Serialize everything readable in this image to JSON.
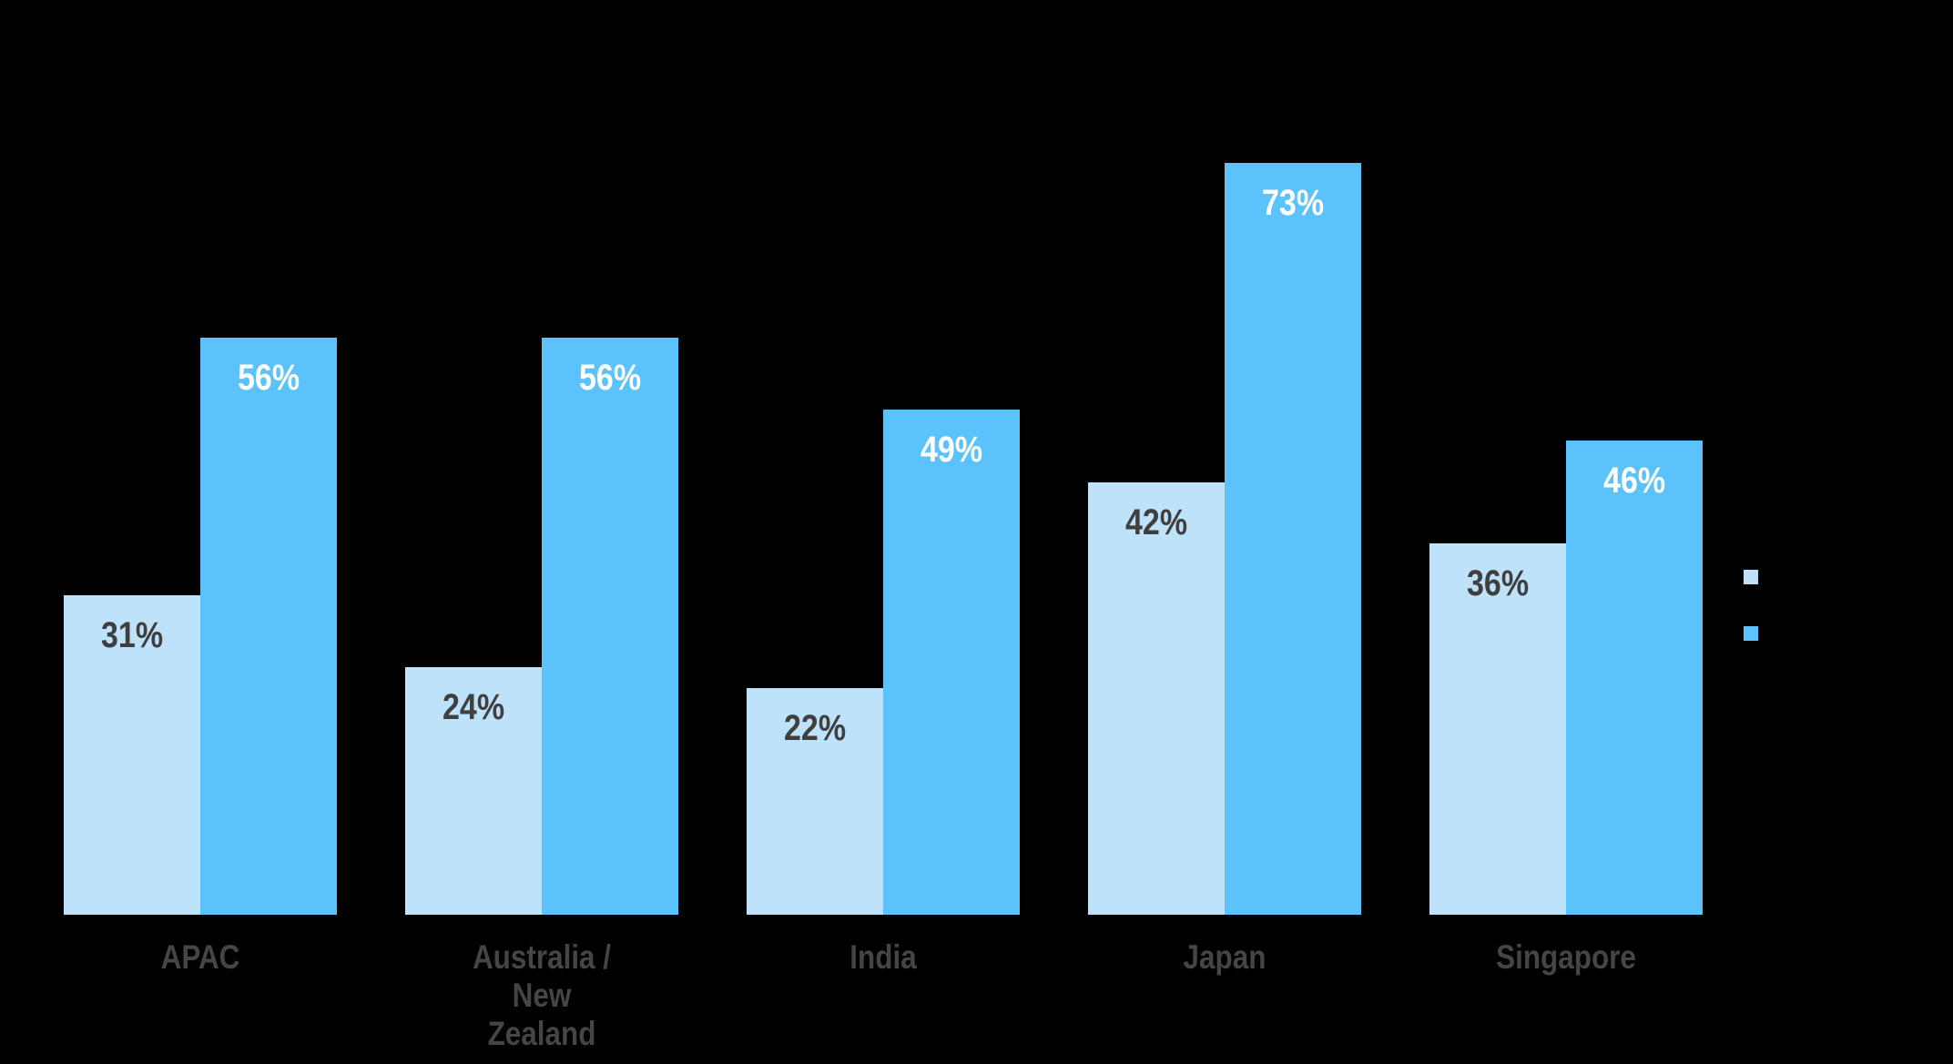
{
  "chart_data": {
    "type": "bar",
    "title": "",
    "categories": [
      "APAC",
      "Australia /\nNew\nZealand",
      "India",
      "Japan",
      "Singapore"
    ],
    "series": [
      {
        "name": "lighter-blue-series",
        "color": "#BDE2FA",
        "label_color": "#3F3F3F",
        "values": [
          31,
          24,
          22,
          42,
          36
        ]
      },
      {
        "name": "darker-blue-series",
        "color": "#5BC2FB",
        "label_color": "#FFFFFF",
        "values": [
          56,
          56,
          49,
          73,
          46
        ]
      }
    ],
    "value_suffix": "%",
    "value_labels": [
      [
        "31%",
        "24%",
        "22%",
        "42%",
        "36%"
      ],
      [
        "56%",
        "56%",
        "49%",
        "73%",
        "46%"
      ]
    ],
    "ylim": [
      0,
      100
    ],
    "axes_visible": false,
    "grid": false,
    "legend_position": "right",
    "legend_labels_visible": false,
    "background_color": "#000000"
  }
}
